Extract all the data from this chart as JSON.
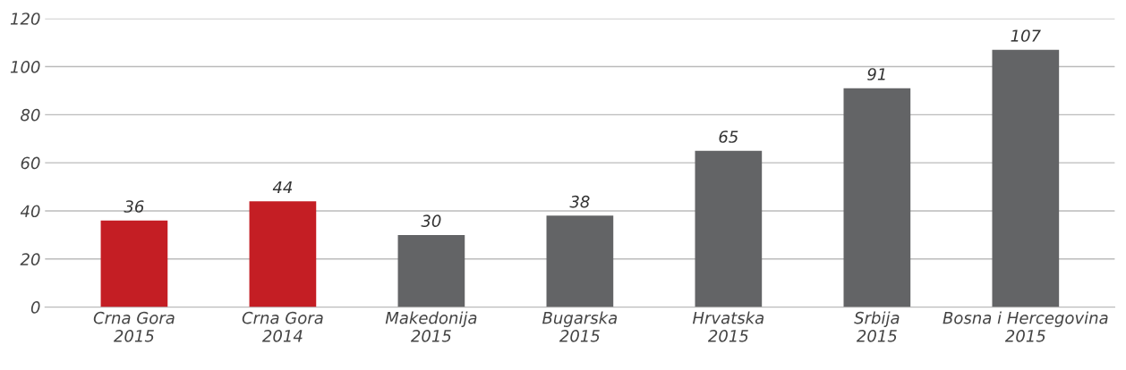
{
  "chart_data": {
    "type": "bar",
    "categories": [
      "Crna Gora\n2015",
      "Crna Gora\n2014",
      "Makedonija\n2015",
      "Bugarska\n2015",
      "Hrvatska\n2015",
      "Srbija\n2015",
      "Bosna i Hercegovina\n2015"
    ],
    "values": [
      36,
      44,
      30,
      38,
      65,
      91,
      107
    ],
    "colors": [
      "#c41e24",
      "#c41e24",
      "#636466",
      "#636466",
      "#636466",
      "#636466",
      "#636466"
    ],
    "ylim": [
      0,
      120
    ],
    "yticks": [
      0,
      20,
      40,
      60,
      80,
      100,
      120
    ],
    "grid": "y",
    "data_labels": true
  }
}
